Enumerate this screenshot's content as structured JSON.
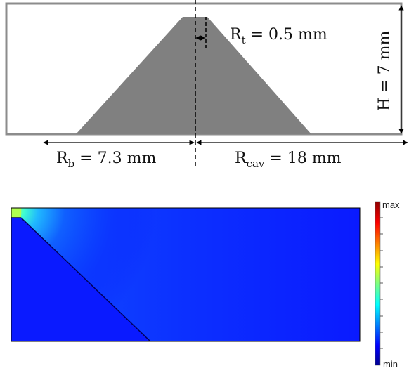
{
  "dimensions": {
    "rt": {
      "base": "R",
      "sub": "t",
      "value": " = 0.5 mm"
    },
    "h": {
      "text": "H = 7 mm"
    },
    "rb": {
      "base": "R",
      "sub": "b",
      "value": " = 7.3 mm"
    },
    "rcav": {
      "base": "R",
      "sub": "cav",
      "value": " = 18 mm"
    }
  },
  "colorbar": {
    "max_label": "max",
    "min_label": "min",
    "colormap": "jet"
  },
  "colors": {
    "frame": "#8c8c8c",
    "shape": "#808080",
    "field_low": "#0a1aff",
    "field_high": "#ff2a00"
  }
}
